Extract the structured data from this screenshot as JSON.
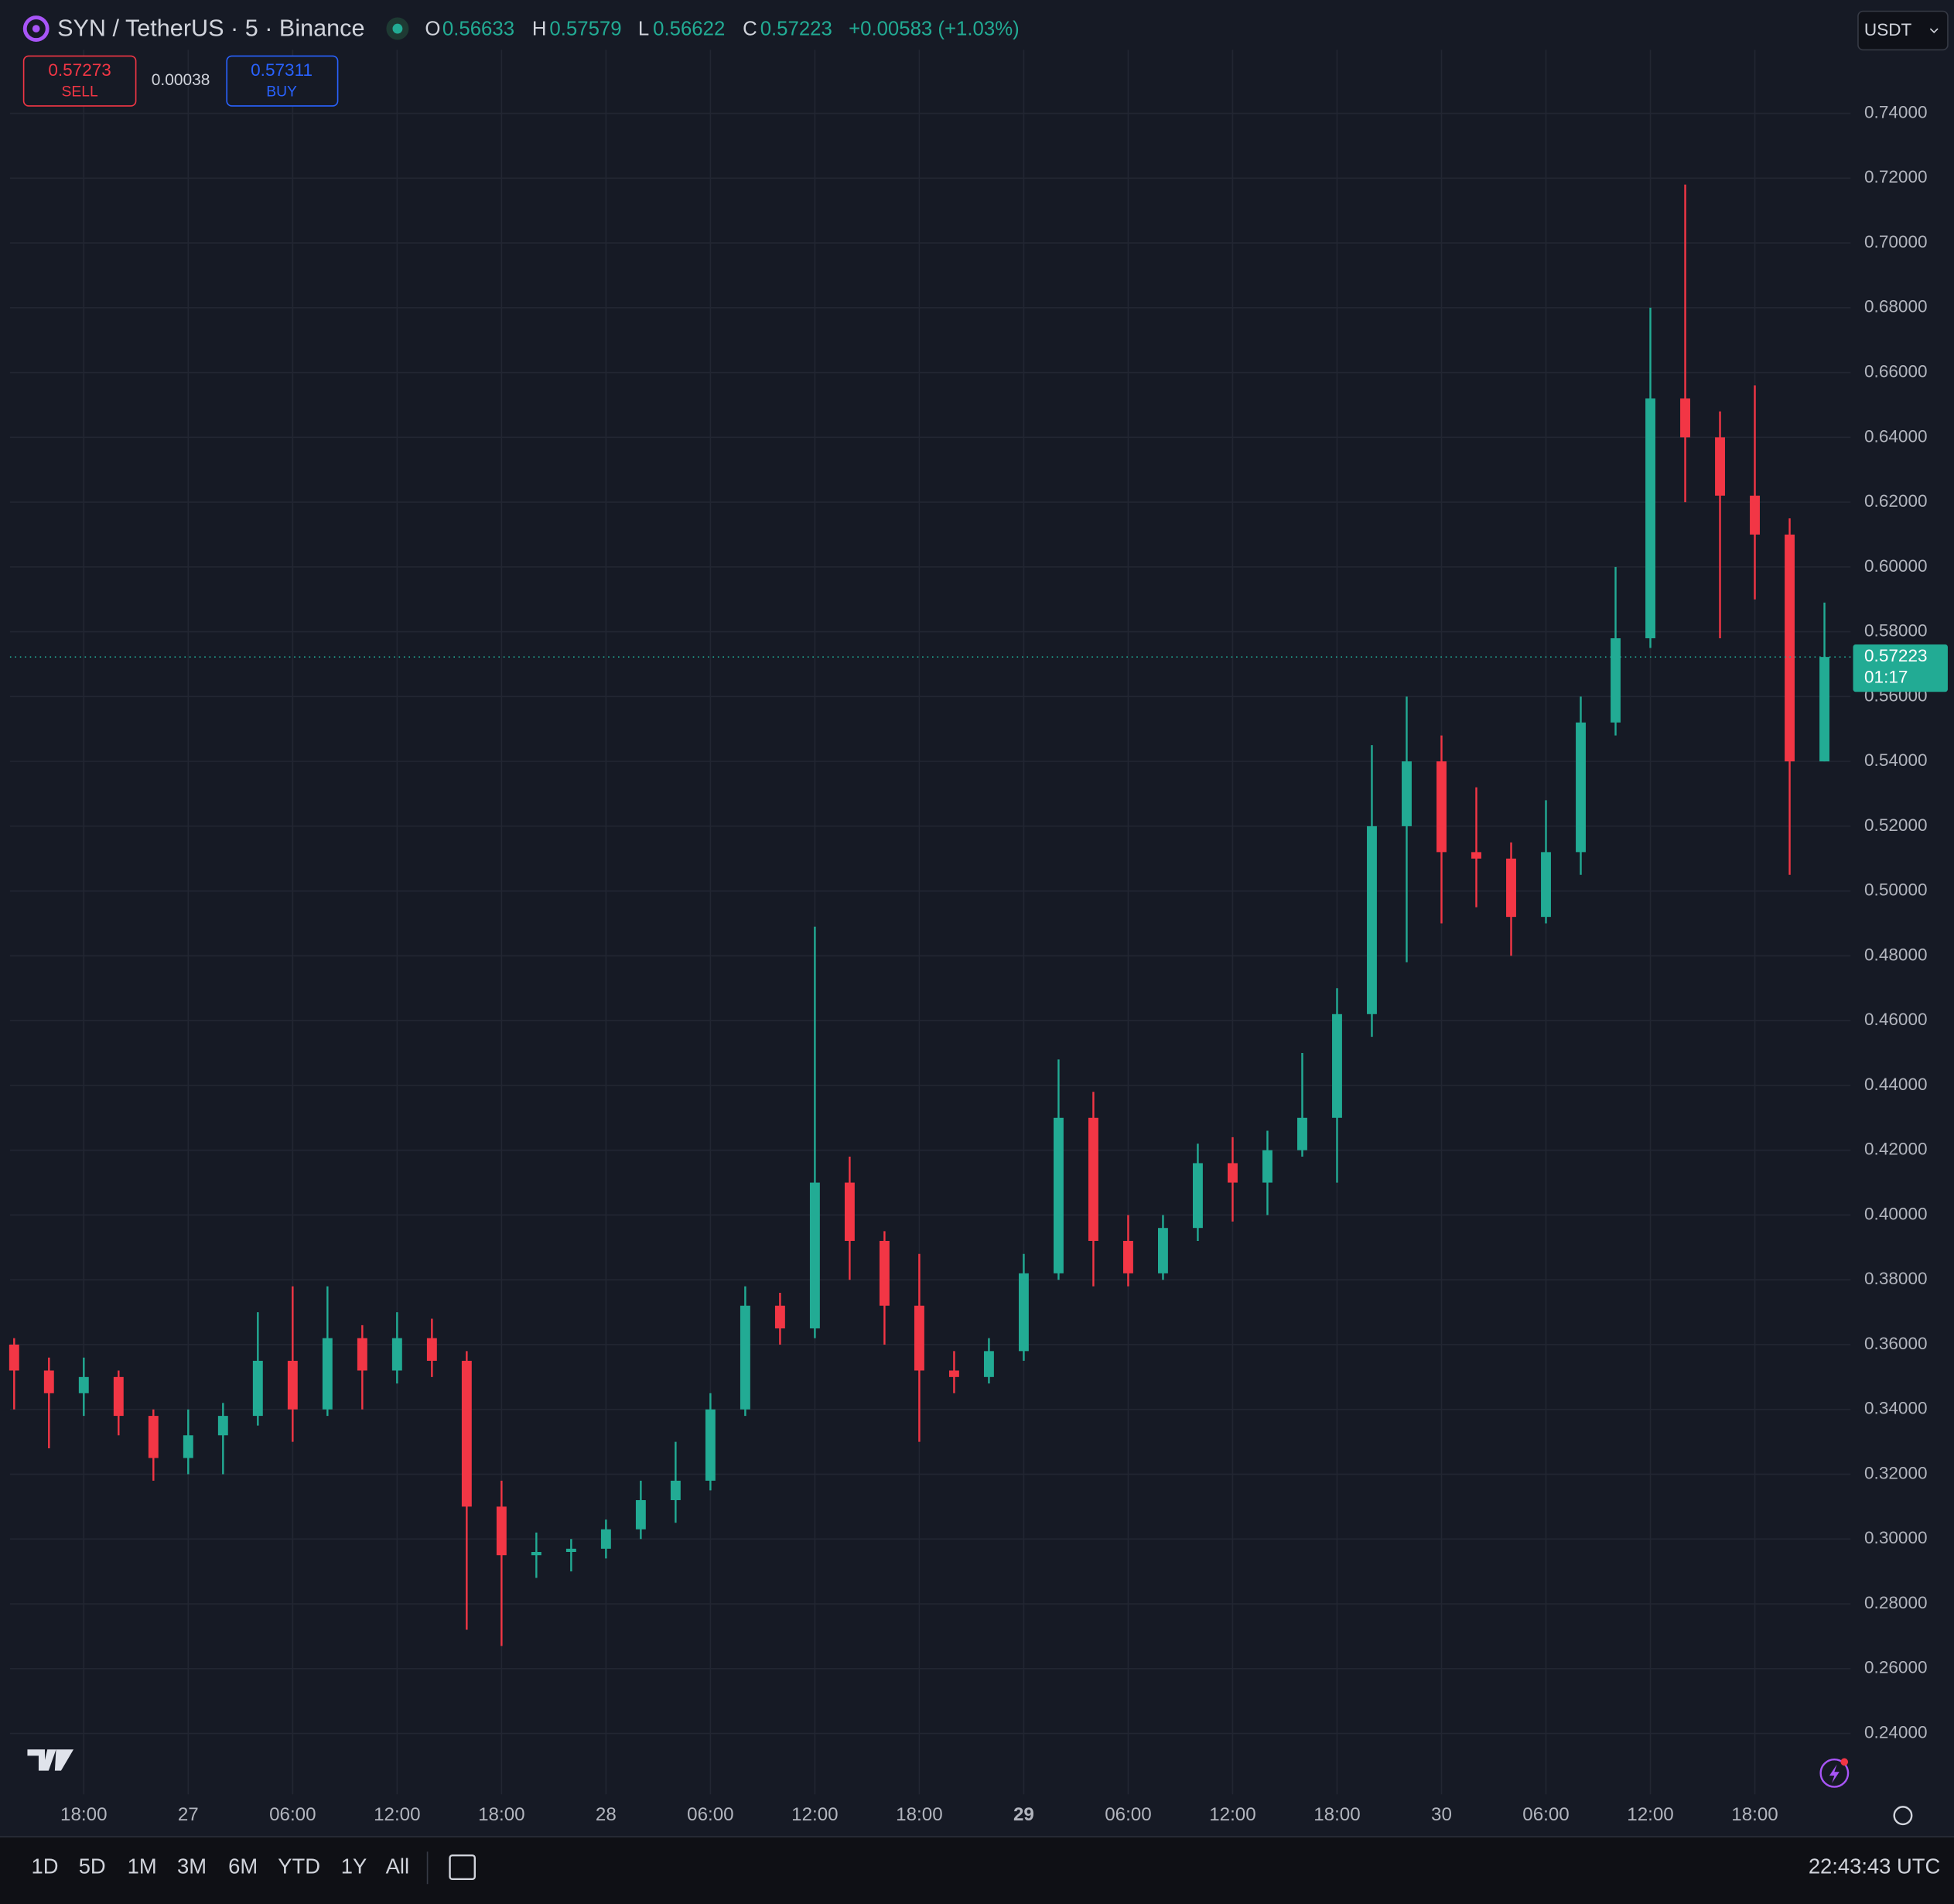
{
  "header": {
    "title": "SYN / TetherUS · 5 · Binance",
    "ohlc": [
      {
        "label": "O",
        "value": "0.56633"
      },
      {
        "label": "H",
        "value": "0.57579"
      },
      {
        "label": "L",
        "value": "0.56622"
      },
      {
        "label": "C",
        "value": "0.57223"
      }
    ],
    "change": "+0.00583 (+1.03%)",
    "sell": {
      "price": "0.57273",
      "label": "SELL"
    },
    "spread": "0.00038",
    "buy": {
      "price": "0.57311",
      "label": "BUY"
    },
    "currency": "USDT"
  },
  "chart_data": {
    "type": "candlestick",
    "up_color": "#22ab94",
    "down_color": "#f23645",
    "grid": true,
    "x": [
      -10,
      -8,
      -6,
      -4,
      -2,
      0,
      2,
      4,
      6,
      8,
      10,
      12,
      14,
      16,
      18,
      20,
      22,
      24,
      26,
      28,
      30,
      32,
      34,
      36,
      38,
      40,
      42,
      44,
      46,
      48,
      50,
      52,
      54,
      56,
      58,
      60,
      62,
      64,
      66,
      68,
      70,
      72,
      74,
      76,
      78,
      80,
      82,
      84,
      86,
      88,
      90,
      92,
      94
    ],
    "open": [
      0.36,
      0.352,
      0.345,
      0.35,
      0.338,
      0.325,
      0.332,
      0.338,
      0.355,
      0.34,
      0.362,
      0.352,
      0.362,
      0.355,
      0.31,
      0.295,
      0.296,
      0.297,
      0.303,
      0.312,
      0.318,
      0.34,
      0.372,
      0.365,
      0.41,
      0.392,
      0.372,
      0.352,
      0.35,
      0.358,
      0.382,
      0.43,
      0.392,
      0.382,
      0.396,
      0.416,
      0.41,
      0.42,
      0.43,
      0.462,
      0.52,
      0.54,
      0.512,
      0.51,
      0.492,
      0.512,
      0.552,
      0.578,
      0.652,
      0.64,
      0.622,
      0.61,
      0.54
    ],
    "high": [
      0.362,
      0.356,
      0.356,
      0.352,
      0.34,
      0.34,
      0.342,
      0.37,
      0.378,
      0.378,
      0.366,
      0.37,
      0.368,
      0.358,
      0.318,
      0.302,
      0.3,
      0.306,
      0.318,
      0.33,
      0.345,
      0.378,
      0.376,
      0.489,
      0.418,
      0.395,
      0.388,
      0.358,
      0.362,
      0.388,
      0.448,
      0.438,
      0.4,
      0.4,
      0.422,
      0.424,
      0.426,
      0.45,
      0.47,
      0.545,
      0.56,
      0.548,
      0.532,
      0.515,
      0.528,
      0.56,
      0.6,
      0.68,
      0.718,
      0.648,
      0.656,
      0.615,
      0.589
    ],
    "low": [
      0.34,
      0.328,
      0.338,
      0.332,
      0.318,
      0.32,
      0.32,
      0.335,
      0.33,
      0.338,
      0.34,
      0.348,
      0.35,
      0.272,
      0.267,
      0.288,
      0.29,
      0.294,
      0.3,
      0.305,
      0.315,
      0.338,
      0.36,
      0.362,
      0.38,
      0.36,
      0.33,
      0.345,
      0.348,
      0.355,
      0.38,
      0.378,
      0.378,
      0.38,
      0.392,
      0.398,
      0.4,
      0.418,
      0.41,
      0.455,
      0.478,
      0.49,
      0.495,
      0.48,
      0.49,
      0.505,
      0.548,
      0.575,
      0.62,
      0.578,
      0.59,
      0.505,
      0.54
    ],
    "close": [
      0.352,
      0.345,
      0.35,
      0.338,
      0.325,
      0.332,
      0.338,
      0.355,
      0.34,
      0.362,
      0.352,
      0.362,
      0.355,
      0.31,
      0.295,
      0.296,
      0.297,
      0.303,
      0.312,
      0.318,
      0.34,
      0.372,
      0.365,
      0.41,
      0.392,
      0.372,
      0.352,
      0.35,
      0.358,
      0.382,
      0.43,
      0.392,
      0.382,
      0.396,
      0.416,
      0.41,
      0.42,
      0.43,
      0.462,
      0.52,
      0.54,
      0.512,
      0.51,
      0.492,
      0.512,
      0.552,
      0.578,
      0.652,
      0.64,
      0.622,
      0.61,
      0.54,
      0.57223
    ],
    "xlim": [
      -10.24,
      95.5
    ],
    "xticks": [
      {
        "value": -6,
        "label": "18:00"
      },
      {
        "value": 0,
        "label": "27"
      },
      {
        "value": 6,
        "label": "06:00"
      },
      {
        "value": 12,
        "label": "12:00"
      },
      {
        "value": 18,
        "label": "18:00"
      },
      {
        "value": 24,
        "label": "28"
      },
      {
        "value": 30,
        "label": "06:00"
      },
      {
        "value": 36,
        "label": "12:00"
      },
      {
        "value": 42,
        "label": "18:00"
      },
      {
        "value": 48,
        "label": "29",
        "bold": true
      },
      {
        "value": 54,
        "label": "06:00"
      },
      {
        "value": 60,
        "label": "12:00"
      },
      {
        "value": 66,
        "label": "18:00"
      },
      {
        "value": 72,
        "label": "30"
      },
      {
        "value": 78,
        "label": "06:00"
      },
      {
        "value": 84,
        "label": "12:00"
      },
      {
        "value": 90,
        "label": "18:00"
      }
    ],
    "ylim": [
      0.2212,
      0.7596
    ],
    "yticks": [
      {
        "value": 0.24,
        "label": "0.24000"
      },
      {
        "value": 0.26,
        "label": "0.26000"
      },
      {
        "value": 0.28,
        "label": "0.28000"
      },
      {
        "value": 0.3,
        "label": "0.30000"
      },
      {
        "value": 0.32,
        "label": "0.32000"
      },
      {
        "value": 0.34,
        "label": "0.34000"
      },
      {
        "value": 0.36,
        "label": "0.36000"
      },
      {
        "value": 0.38,
        "label": "0.38000"
      },
      {
        "value": 0.4,
        "label": "0.40000"
      },
      {
        "value": 0.42,
        "label": "0.42000"
      },
      {
        "value": 0.44,
        "label": "0.44000"
      },
      {
        "value": 0.46,
        "label": "0.46000"
      },
      {
        "value": 0.48,
        "label": "0.48000"
      },
      {
        "value": 0.5,
        "label": "0.50000"
      },
      {
        "value": 0.52,
        "label": "0.52000"
      },
      {
        "value": 0.54,
        "label": "0.54000"
      },
      {
        "value": 0.56,
        "label": "0.56000"
      },
      {
        "value": 0.58,
        "label": "0.58000"
      },
      {
        "value": 0.6,
        "label": "0.60000"
      },
      {
        "value": 0.62,
        "label": "0.62000"
      },
      {
        "value": 0.64,
        "label": "0.64000"
      },
      {
        "value": 0.66,
        "label": "0.66000"
      },
      {
        "value": 0.68,
        "label": "0.68000"
      },
      {
        "value": 0.7,
        "label": "0.70000"
      },
      {
        "value": 0.72,
        "label": "0.72000"
      },
      {
        "value": 0.74,
        "label": "0.74000"
      }
    ],
    "last_price": {
      "value": 0.57223,
      "label": "0.57223"
    },
    "countdown": "01:17"
  },
  "toolbar": {
    "ranges": [
      "1D",
      "5D",
      "1M",
      "3M",
      "6M",
      "YTD",
      "1Y",
      "All"
    ],
    "clock": "22:43:43 UTC"
  }
}
